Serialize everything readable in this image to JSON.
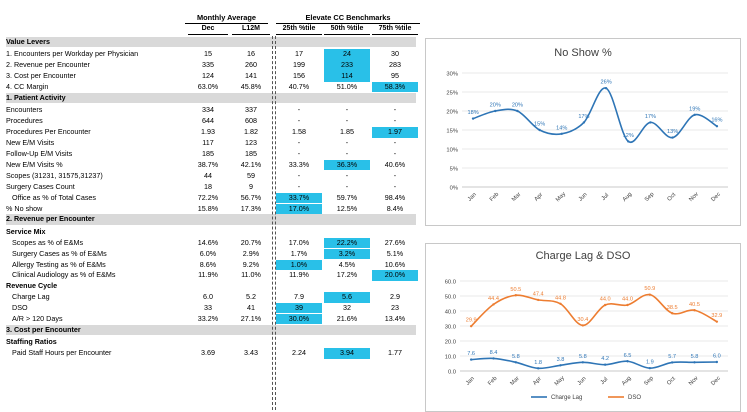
{
  "header": {
    "group_monthly": "Monthly Average",
    "group_bench": "Elevate CC Benchmarks",
    "cols": [
      "Dec",
      "L12M",
      "25th %tile",
      "50th %tile",
      "75th %tile"
    ]
  },
  "rows": [
    {
      "label": "Value Levers",
      "type": "section",
      "vals": [
        "",
        "",
        "",
        "",
        ""
      ],
      "hl": []
    },
    {
      "label": "1. Encounters per Workday per Physician",
      "type": "data",
      "vals": [
        "15",
        "16",
        "17",
        "24",
        "30"
      ],
      "hl": [
        3
      ]
    },
    {
      "label": "2. Revenue per Encounter",
      "type": "data",
      "vals": [
        "335",
        "260",
        "199",
        "233",
        "283"
      ],
      "hl": [
        3
      ]
    },
    {
      "label": "3. Cost per Encounter",
      "type": "data",
      "vals": [
        "124",
        "141",
        "156",
        "114",
        "95"
      ],
      "hl": [
        3
      ]
    },
    {
      "label": "4. CC Margin",
      "type": "data",
      "vals": [
        "63.0%",
        "45.8%",
        "40.7%",
        "51.0%",
        "58.3%"
      ],
      "hl": [
        4
      ]
    },
    {
      "label": "1. Patient Activity",
      "type": "section",
      "vals": [
        "",
        "",
        "",
        "",
        ""
      ],
      "hl": []
    },
    {
      "label": "Encounters",
      "type": "data",
      "vals": [
        "334",
        "337",
        "-",
        "-",
        "-"
      ],
      "hl": []
    },
    {
      "label": "Procedures",
      "type": "data",
      "vals": [
        "644",
        "608",
        "-",
        "-",
        "-"
      ],
      "hl": []
    },
    {
      "label": "Procedures Per Encounter",
      "type": "data",
      "vals": [
        "1.93",
        "1.82",
        "1.58",
        "1.85",
        "1.97"
      ],
      "hl": [
        4
      ]
    },
    {
      "label": "New E/M Visits",
      "type": "data",
      "vals": [
        "117",
        "123",
        "-",
        "-",
        "-"
      ],
      "hl": []
    },
    {
      "label": "Follow-Up E/M Visits",
      "type": "data",
      "vals": [
        "185",
        "185",
        "-",
        "-",
        "-"
      ],
      "hl": []
    },
    {
      "label": "New E/M Visits %",
      "type": "data",
      "vals": [
        "38.7%",
        "42.1%",
        "33.3%",
        "36.3%",
        "40.6%"
      ],
      "hl": [
        3
      ]
    },
    {
      "label": "Scopes (31231, 31575,31237)",
      "type": "data",
      "vals": [
        "44",
        "59",
        "-",
        "-",
        "-"
      ],
      "hl": []
    },
    {
      "label": "Surgery Cases Count",
      "type": "data",
      "vals": [
        "18",
        "9",
        "-",
        "-",
        "-"
      ],
      "hl": []
    },
    {
      "label": "Office as % of Total Cases",
      "type": "indent",
      "vals": [
        "72.2%",
        "56.7%",
        "33.7%",
        "59.7%",
        "98.4%"
      ],
      "hl": [
        2
      ]
    },
    {
      "label": "% No show",
      "type": "data",
      "vals": [
        "15.8%",
        "17.3%",
        "17.0%",
        "12.5%",
        "8.4%"
      ],
      "hl": [
        2
      ]
    },
    {
      "label": "2. Revenue per Encounter",
      "type": "section",
      "vals": [
        "",
        "",
        "",
        "",
        ""
      ],
      "hl": []
    },
    {
      "label": "Service Mix",
      "type": "sub",
      "vals": [
        "",
        "",
        "",
        "",
        ""
      ],
      "hl": []
    },
    {
      "label": "Scopes as % of E&Ms",
      "type": "indent",
      "vals": [
        "14.6%",
        "20.7%",
        "17.0%",
        "22.2%",
        "27.6%"
      ],
      "hl": [
        3
      ]
    },
    {
      "label": "Surgery Cases as % of E&Ms",
      "type": "indent",
      "vals": [
        "6.0%",
        "2.9%",
        "1.7%",
        "3.2%",
        "5.1%"
      ],
      "hl": [
        3
      ]
    },
    {
      "label": "Allergy Testing as % of E&Ms",
      "type": "indent",
      "vals": [
        "8.6%",
        "9.2%",
        "1.0%",
        "4.5%",
        "10.6%"
      ],
      "hl": [
        2
      ]
    },
    {
      "label": "Clinical Audiology as % of E&Ms",
      "type": "indent",
      "vals": [
        "11.9%",
        "11.0%",
        "11.9%",
        "17.2%",
        "20.0%"
      ],
      "hl": [
        4
      ]
    },
    {
      "label": "Revenue Cycle",
      "type": "sub",
      "vals": [
        "",
        "",
        "",
        "",
        ""
      ],
      "hl": []
    },
    {
      "label": "Charge Lag",
      "type": "indent",
      "vals": [
        "6.0",
        "5.2",
        "7.9",
        "5.6",
        "2.9"
      ],
      "hl": [
        3
      ]
    },
    {
      "label": "DSO",
      "type": "indent",
      "vals": [
        "33",
        "41",
        "39",
        "32",
        "23"
      ],
      "hl": [
        2
      ]
    },
    {
      "label": "A/R > 120 Days",
      "type": "indent",
      "vals": [
        "33.2%",
        "27.1%",
        "30.0%",
        "21.6%",
        "13.4%"
      ],
      "hl": [
        2
      ]
    },
    {
      "label": "3. Cost per Encounter",
      "type": "section",
      "vals": [
        "",
        "",
        "",
        "",
        ""
      ],
      "hl": []
    },
    {
      "label": "Staffing Ratios",
      "type": "sub",
      "vals": [
        "",
        "",
        "",
        "",
        ""
      ],
      "hl": []
    },
    {
      "label": "Paid Staff Hours per Encounter",
      "type": "indent",
      "vals": [
        "3.69",
        "3.43",
        "2.24",
        "3.94",
        "1.77"
      ],
      "hl": [
        3
      ]
    }
  ],
  "colors": {
    "highlight": "#29c0e8",
    "blue": "#2e75b6",
    "orange": "#ed7d31",
    "band": "#d9d9d9"
  },
  "chart_data": [
    {
      "type": "line",
      "title": "No Show %",
      "categories": [
        "Jan",
        "Feb",
        "Mar",
        "Apr",
        "May",
        "Jun",
        "Jul",
        "Aug",
        "Sep",
        "Oct",
        "Nov",
        "Dec"
      ],
      "series": [
        {
          "name": "No Show %",
          "values": [
            18,
            20,
            20,
            15,
            14,
            17,
            26,
            12,
            17,
            13,
            19,
            16
          ],
          "labels": [
            "18%",
            "20%",
            "20%",
            "15%",
            "14%",
            "17%",
            "26%",
            "12%",
            "17%",
            "13%",
            "19%",
            "16%"
          ]
        }
      ],
      "yticks": [
        "0%",
        "5%",
        "10%",
        "15%",
        "20%",
        "25%",
        "30%"
      ],
      "ylim": [
        0,
        30
      ]
    },
    {
      "type": "line",
      "title": "Charge Lag & DSO",
      "categories": [
        "Jan",
        "Feb",
        "Mar",
        "Apr",
        "May",
        "Jun",
        "Jul",
        "Aug",
        "Sep",
        "Oct",
        "Nov",
        "Dec"
      ],
      "series": [
        {
          "name": "Charge Lag",
          "values": [
            7.6,
            8.4,
            5.8,
            1.8,
            3.8,
            5.8,
            4.2,
            6.5,
            1.9,
            5.7,
            5.8,
            6.0
          ],
          "labels": [
            "7.6",
            "8.4",
            "5.8",
            "1.8",
            "3.8",
            "5.8",
            "4.2",
            "6.5",
            "1.9",
            "5.7",
            "5.8",
            "6.0"
          ]
        },
        {
          "name": "DSO",
          "values": [
            29.9,
            44.4,
            50.5,
            47.4,
            44.8,
            30.4,
            44.0,
            44.0,
            50.9,
            38.5,
            40.5,
            32.9
          ],
          "labels": [
            "29.9",
            "44.4",
            "50.5",
            "47.4",
            "44.8",
            "30.4",
            "44.0",
            "44.0",
            "50.9",
            "38.5",
            "40.5",
            "32.9"
          ]
        }
      ],
      "yticks": [
        "0.0",
        "10.0",
        "20.0",
        "30.0",
        "40.0",
        "50.0",
        "60.0"
      ],
      "ylim": [
        0,
        60
      ],
      "legend": [
        "Charge Lag",
        "DSO"
      ]
    }
  ]
}
